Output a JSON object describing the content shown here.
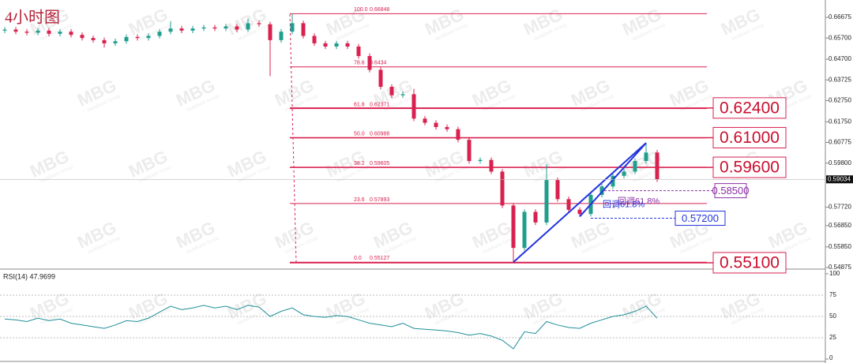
{
  "chart_data": {
    "type": "candlestick",
    "title": "4小时图",
    "watermark": "MBG",
    "watermark_sub": "MultiBank Group",
    "open": [
      0.6605,
      0.661,
      0.66,
      0.6595,
      0.6605,
      0.659,
      0.66,
      0.6585,
      0.657,
      0.656,
      0.6545,
      0.6555,
      0.6575,
      0.657,
      0.658,
      0.66,
      0.6615,
      0.6605,
      0.6615,
      0.662,
      0.6615,
      0.6625,
      0.661,
      0.664,
      0.6635,
      0.656,
      0.66,
      0.664,
      0.658,
      0.6545,
      0.653,
      0.6545,
      0.653,
      0.6485,
      0.642,
      0.634,
      0.63,
      0.6305,
      0.619,
      0.617,
      0.615,
      0.614,
      0.609,
      0.599,
      0.5995,
      0.594,
      0.578,
      0.558,
      0.575,
      0.57,
      0.59,
      0.581,
      0.576,
      0.574,
      0.583,
      0.587,
      0.592,
      0.594,
      0.599,
      0.603
    ],
    "high": [
      0.6622,
      0.6622,
      0.6612,
      0.6617,
      0.6617,
      0.6612,
      0.6612,
      0.6597,
      0.6582,
      0.6572,
      0.6567,
      0.6587,
      0.6587,
      0.6592,
      0.6612,
      0.665,
      0.6627,
      0.6627,
      0.6632,
      0.6632,
      0.6637,
      0.6637,
      0.6662,
      0.6652,
      0.6647,
      0.6612,
      0.66848,
      0.6652,
      0.6592,
      0.6557,
      0.6557,
      0.6557,
      0.6542,
      0.6497,
      0.6432,
      0.6352,
      0.6317,
      0.633,
      0.6202,
      0.6182,
      0.6162,
      0.6152,
      0.6102,
      0.6007,
      0.6007,
      0.5952,
      0.5792,
      0.5762,
      0.5762,
      0.5975,
      0.5912,
      0.5822,
      0.5772,
      0.5842,
      0.5882,
      0.5932,
      0.5952,
      0.6002,
      0.6075,
      0.6042
    ],
    "low": [
      0.6593,
      0.6588,
      0.6583,
      0.6583,
      0.6578,
      0.6578,
      0.6573,
      0.6558,
      0.6548,
      0.6525,
      0.6533,
      0.6543,
      0.6558,
      0.6558,
      0.6568,
      0.6588,
      0.6593,
      0.6593,
      0.6603,
      0.6603,
      0.6603,
      0.6598,
      0.6598,
      0.6623,
      0.639,
      0.6548,
      0.6588,
      0.6568,
      0.6533,
      0.6518,
      0.6518,
      0.6518,
      0.6473,
      0.6408,
      0.6328,
      0.6288,
      0.6288,
      0.6178,
      0.6158,
      0.6138,
      0.6128,
      0.6078,
      0.5978,
      0.5978,
      0.5928,
      0.5768,
      0.55127,
      0.5568,
      0.5688,
      0.5688,
      0.5798,
      0.5748,
      0.5728,
      0.5728,
      0.5818,
      0.5858,
      0.5908,
      0.5928,
      0.5978,
      0.5891
    ],
    "close": [
      0.661,
      0.66,
      0.6595,
      0.6605,
      0.659,
      0.66,
      0.6585,
      0.657,
      0.656,
      0.6545,
      0.6555,
      0.6575,
      0.657,
      0.658,
      0.66,
      0.6615,
      0.6605,
      0.6615,
      0.662,
      0.6615,
      0.6625,
      0.661,
      0.664,
      0.6635,
      0.656,
      0.66,
      0.664,
      0.658,
      0.6545,
      0.653,
      0.6545,
      0.653,
      0.6485,
      0.642,
      0.634,
      0.63,
      0.6305,
      0.619,
      0.617,
      0.615,
      0.614,
      0.609,
      0.599,
      0.5995,
      0.594,
      0.578,
      0.558,
      0.575,
      0.57,
      0.59,
      0.581,
      0.576,
      0.574,
      0.583,
      0.587,
      0.592,
      0.594,
      0.599,
      0.603,
      0.5903
    ],
    "up_color": "#1f9e8e",
    "down_color": "#d9214f",
    "ylim": [
      0.54838,
      0.67494
    ],
    "yticks": [
      0.66675,
      {
        "value": 0.657,
        "label": "0.65700"
      },
      {
        "value": 0.647,
        "label": "0.64700"
      },
      0.63725,
      {
        "value": 0.6275,
        "label": "0.62750"
      },
      {
        "value": 0.6175,
        "label": "0.61750"
      },
      0.60775,
      {
        "value": 0.598,
        "label": "0.59800"
      },
      {
        "value": 0.5772,
        "label": "0.57720"
      },
      {
        "value": 0.5685,
        "label": "0.56850"
      },
      {
        "value": 0.5585,
        "label": "0.55850"
      },
      0.54875
    ],
    "current_price": 0.59034,
    "fib": [
      {
        "ratio": "100.0",
        "value": 0.66848
      },
      {
        "ratio": "78.6",
        "value": 0.6434
      },
      {
        "ratio": "61.8",
        "value": 0.62371
      },
      {
        "ratio": "50.0",
        "value": 0.60988
      },
      {
        "ratio": "38.2",
        "value": 0.59605
      },
      {
        "ratio": "23.6",
        "value": 0.57893
      },
      {
        "ratio": "0.0",
        "value": 0.55127
      }
    ],
    "levels": [
      {
        "value": 0.624,
        "label": "0.62400"
      },
      {
        "value": 0.61,
        "label": "0.61000"
      },
      {
        "value": 0.596,
        "label": "0.59600"
      },
      {
        "value": 0.551,
        "label": "0.55100"
      }
    ],
    "retracements": [
      {
        "text": "回调61.8%",
        "value": 0.585,
        "label": "0.58500",
        "color": "#8b2fa6"
      },
      {
        "text": "回调61.8%",
        "value": 0.572,
        "label": "0.57200",
        "color": "#2233dd"
      }
    ],
    "trendlines": [
      {
        "from": 46,
        "to": 58,
        "values": [
          0.55127,
          0.6075
        ]
      },
      {
        "from": 52,
        "to": 58,
        "values": [
          0.5728,
          0.6075
        ]
      }
    ],
    "rsi": {
      "label": "RSI(14) 47.9699",
      "color": "#1f8f9a",
      "values": [
        47,
        46,
        44,
        48,
        45,
        47,
        42,
        40,
        38,
        36,
        40,
        45,
        44,
        48,
        55,
        62,
        58,
        60,
        63,
        60,
        62,
        58,
        63,
        61,
        50,
        56,
        60,
        52,
        50,
        49,
        51,
        50,
        46,
        42,
        40,
        38,
        42,
        36,
        35,
        34,
        33,
        31,
        28,
        30,
        27,
        22,
        12,
        32,
        30,
        44,
        40,
        37,
        36,
        42,
        46,
        50,
        52,
        56,
        62,
        47.9699
      ],
      "ylim": [
        0,
        100
      ],
      "yticks": [
        100,
        75,
        50,
        25,
        0
      ]
    }
  }
}
